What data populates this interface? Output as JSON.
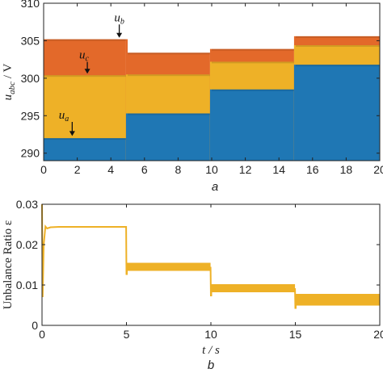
{
  "colors": {
    "ua": "#1f77b4",
    "ub": "#e3692a",
    "uc": "#eeb127",
    "ratio": "#eeb127",
    "axis": "#222222"
  },
  "chart_data": [
    {
      "type": "area",
      "panel_label": "a",
      "ylabel_main": "u",
      "ylabel_sub": "abc",
      "ylabel_unit": " / V",
      "xlim": [
        0,
        20
      ],
      "ylim": [
        289,
        310
      ],
      "xticks": [
        "0",
        "2",
        "4",
        "6",
        "8",
        "10",
        "12",
        "14",
        "16",
        "18",
        "20"
      ],
      "yticks": [
        "290",
        "295",
        "300",
        "305",
        "310"
      ],
      "grid": false,
      "segments_x": [
        [
          0,
          4.9
        ],
        [
          5,
          9.9
        ],
        [
          10,
          14.9
        ],
        [
          15,
          20
        ]
      ],
      "series": [
        {
          "key": "ua",
          "label_main": "u",
          "label_sub": "a",
          "values": [
            292,
            295.3,
            298.5,
            301.8
          ]
        },
        {
          "key": "uc",
          "label_main": "u",
          "label_sub": "c",
          "values": [
            300.4,
            300.5,
            302.2,
            304.4
          ]
        },
        {
          "key": "ub",
          "label_main": "u",
          "label_sub": "b",
          "values": [
            305.2,
            303.4,
            303.9,
            305.6
          ]
        }
      ],
      "annotations": [
        {
          "series": "ub",
          "text_x": 4.5,
          "text_y": 307.6,
          "arrow_to": [
            4.5,
            305.4
          ]
        },
        {
          "series": "uc",
          "text_x": 2.4,
          "text_y": 302.6,
          "arrow_to": [
            2.6,
            300.6
          ]
        },
        {
          "series": "ua",
          "text_x": 1.2,
          "text_y": 294.6,
          "arrow_to": [
            1.7,
            292.3
          ]
        }
      ]
    },
    {
      "type": "line",
      "panel_label": "b",
      "ylabel": "Unbalance Ratio ε",
      "xlabel": "t / s",
      "xlim": [
        0,
        20
      ],
      "ylim": [
        0,
        0.03
      ],
      "xticks": [
        "0",
        "5",
        "10",
        "15",
        "20"
      ],
      "yticks": [
        "0",
        "0.01",
        "0.02",
        "0.03"
      ],
      "grid": false,
      "series": [
        {
          "key": "ratio",
          "x": [
            0,
            0.04,
            0.1,
            0.2,
            0.3,
            0.5,
            1,
            2,
            3,
            4,
            4.98
          ],
          "y": [
            0.03,
            0.007,
            0.02,
            0.0245,
            0.024,
            0.0243,
            0.0244,
            0.0244,
            0.0244,
            0.0244,
            0.0244
          ]
        }
      ],
      "bands": [
        {
          "x": [
            5,
            9.98
          ],
          "low": 0.0135,
          "high": 0.0155,
          "spike": 0.0125
        },
        {
          "x": [
            10,
            14.98
          ],
          "low": 0.0082,
          "high": 0.0102,
          "spike": 0.0072
        },
        {
          "x": [
            15,
            20
          ],
          "low": 0.0049,
          "high": 0.0078,
          "spike": 0.0041
        }
      ]
    }
  ]
}
